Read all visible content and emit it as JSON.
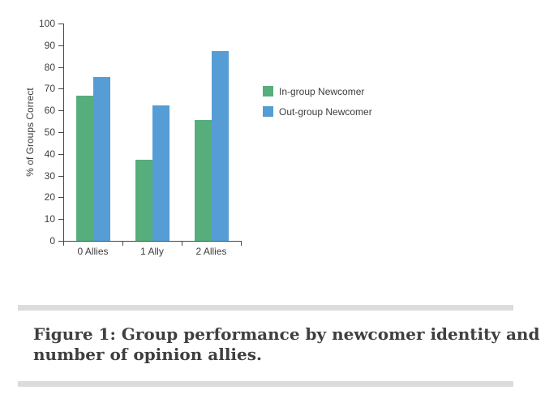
{
  "chart_data": {
    "type": "bar",
    "title": "",
    "xlabel": "",
    "ylabel": "% of Groups Correct",
    "categories": [
      "0 Allies",
      "1 Ally",
      "2 Allies"
    ],
    "series": [
      {
        "name": "In-group Newcomer",
        "color": "#56ae7c",
        "values": [
          66.7,
          37.5,
          55.6
        ]
      },
      {
        "name": "Out-group Newcomer",
        "color": "#559dd4",
        "values": [
          75.3,
          62.5,
          87.5
        ]
      }
    ],
    "ylim": [
      0,
      100
    ],
    "ytick_interval": 10,
    "grid": false,
    "legend_position": "right"
  },
  "caption": {
    "line1": "Figure 1: Group performance by newcomer identity and",
    "line2": "number of opinion allies."
  },
  "colors": {
    "axis": "#474747",
    "chart_text": "#3d3d3d",
    "caption_text": "#3f3f3f",
    "divider": "#dcdcdc"
  }
}
